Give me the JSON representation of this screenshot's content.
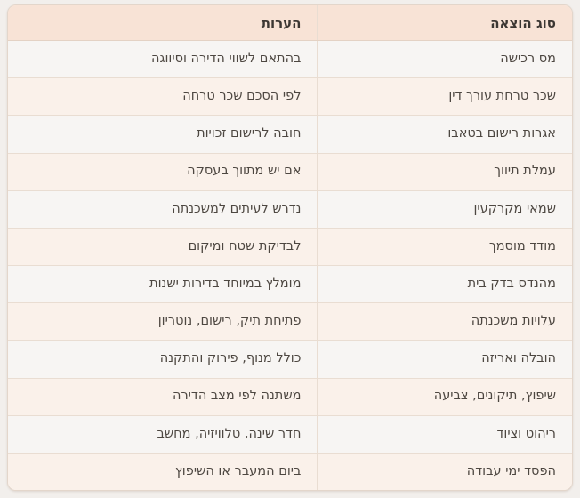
{
  "colors": {
    "page_bg": "#f2efec",
    "header_bg": "#f8e3d6",
    "header_text": "#3c3733",
    "header_border": "#e4d2c4",
    "row_odd_bg": "#f7f5f3",
    "row_even_bg": "#faf1ea",
    "border": "#e9ddd2",
    "outer_border": "#e3d6cb",
    "cell_text": "#4d4741"
  },
  "table": {
    "direction": "rtl",
    "columns": [
      {
        "key": "expense_type",
        "label": "סוג הוצאה"
      },
      {
        "key": "notes",
        "label": "הערות"
      }
    ],
    "rows": [
      {
        "expense_type": "מס רכישה",
        "notes": "בהתאם לשווי הדירה וסיווגה"
      },
      {
        "expense_type": "שכר טרחת עורך דין",
        "notes": "לפי הסכם שכר טרחה"
      },
      {
        "expense_type": "אגרות רישום בטאבו",
        "notes": "חובה לרישום זכויות"
      },
      {
        "expense_type": "עמלת תיווך",
        "notes": "אם יש מתווך בעסקה"
      },
      {
        "expense_type": "שמאי מקרקעין",
        "notes": "נדרש לעיתים למשכנתה"
      },
      {
        "expense_type": "מודד מוסמך",
        "notes": "לבדיקת שטח ומיקום"
      },
      {
        "expense_type": "מהנדס בדק בית",
        "notes": "מומלץ במיוחד בדירות ישנות"
      },
      {
        "expense_type": "עלויות משכנתה",
        "notes": "פתיחת תיק, רישום, נוטריון"
      },
      {
        "expense_type": "הובלה ואריזה",
        "notes": "כולל מנוף, פירוק והתקנה"
      },
      {
        "expense_type": "שיפוץ, תיקונים, צביעה",
        "notes": "משתנה לפי מצב הדירה"
      },
      {
        "expense_type": "ריהוט וציוד",
        "notes": "חדר שינה, טלוויזיה, מחשב"
      },
      {
        "expense_type": "הפסד ימי עבודה",
        "notes": "ביום המעבר או השיפוץ"
      }
    ]
  }
}
